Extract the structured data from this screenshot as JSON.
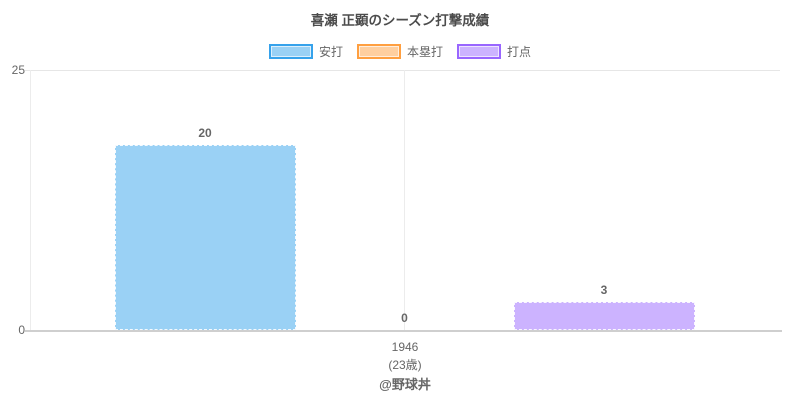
{
  "title": "喜瀬 正顕のシーズン打撃成績",
  "footer": "@野球丼",
  "y_axis": {
    "top_label": "25",
    "bottom_label": "0"
  },
  "x_axis": {
    "tick_line1": "1946",
    "tick_line2": "(23歳)"
  },
  "legend": {
    "items": [
      {
        "label": "安打",
        "fill": "#9AD1F5",
        "border": "#36A2EB"
      },
      {
        "label": "本塁打",
        "fill": "#FFCF9F",
        "border": "#FF9F40"
      },
      {
        "label": "打点",
        "fill": "#CCB3FF",
        "border": "#9966FF"
      }
    ]
  },
  "chart_data": {
    "type": "bar",
    "title": "喜瀬 正顕のシーズン打撃成績",
    "categories": [
      "1946 (23歳)"
    ],
    "series": [
      {
        "name": "安打",
        "values": [
          20
        ],
        "color": "#9AD1F5"
      },
      {
        "name": "本塁打",
        "values": [
          0
        ],
        "color": "#FFCF9F"
      },
      {
        "name": "打点",
        "values": [
          3
        ],
        "color": "#CCB3FF"
      }
    ],
    "ylim": [
      0,
      25
    ],
    "yticks": [
      0,
      25
    ],
    "legend_position": "top",
    "grid": true,
    "value_labels_shown": true,
    "footer": "@野球丼"
  }
}
